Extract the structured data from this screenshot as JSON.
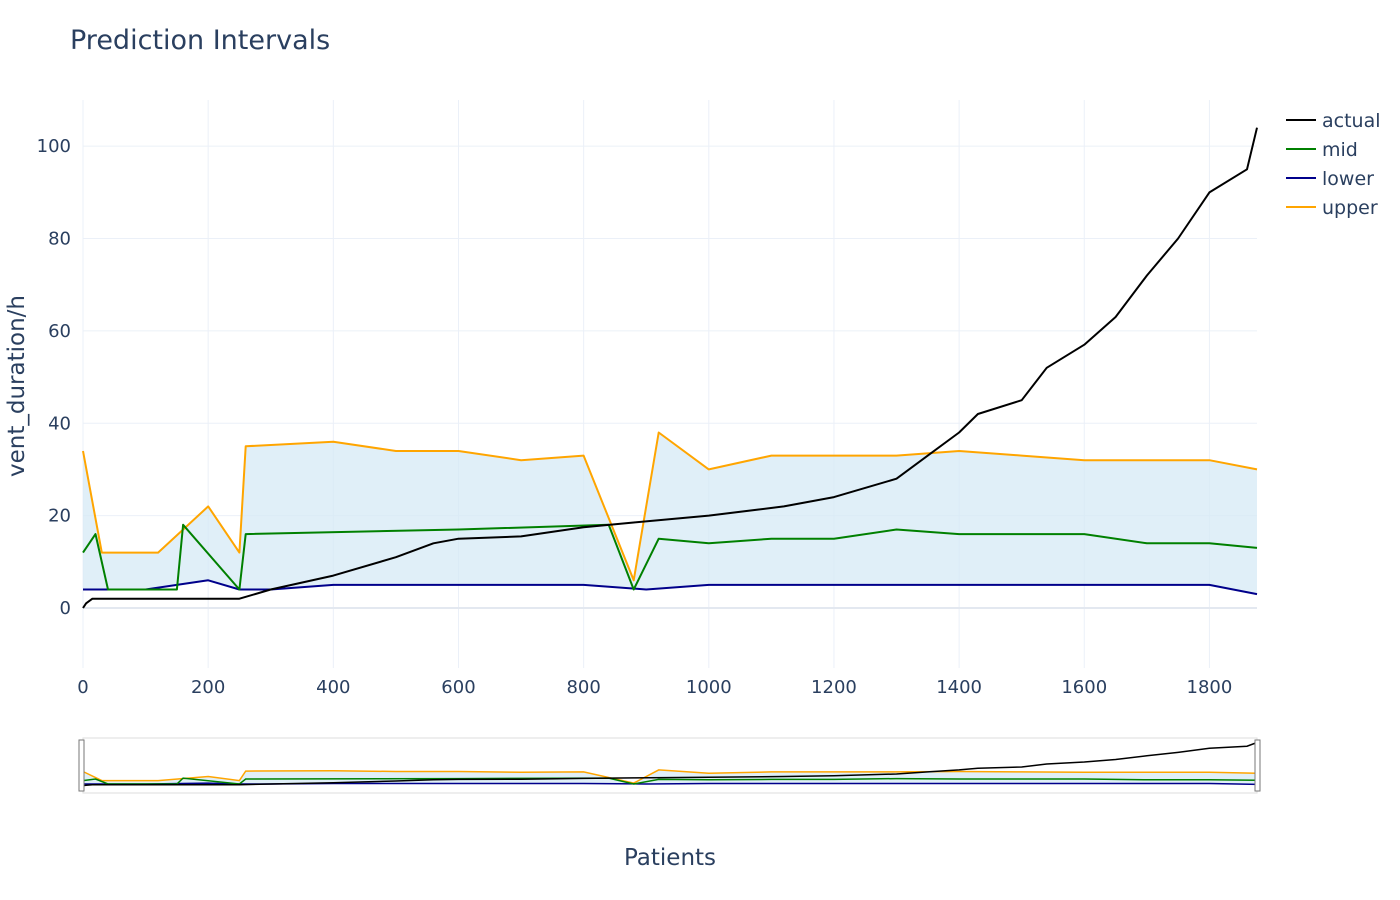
{
  "chart_data": {
    "type": "line",
    "title": "Prediction Intervals",
    "xlabel": "Patients",
    "ylabel": "vent_duration/h",
    "xlim": [
      0,
      1876
    ],
    "ylim": [
      -13,
      110
    ],
    "x_ticks": [
      "0",
      "200",
      "400",
      "600",
      "800",
      "1000",
      "1200",
      "1400",
      "1600",
      "1800"
    ],
    "y_ticks": [
      "0",
      "20",
      "40",
      "60",
      "80",
      "100"
    ],
    "grid": true,
    "legend_position": "top-right",
    "range_slider": true,
    "interval_fill_color": "#d6eaf5",
    "series": [
      {
        "name": "actual",
        "color": "#000000",
        "points": [
          [
            0,
            0
          ],
          [
            5,
            1
          ],
          [
            15,
            2
          ],
          [
            250,
            2
          ],
          [
            300,
            4
          ],
          [
            400,
            7
          ],
          [
            500,
            11
          ],
          [
            560,
            14
          ],
          [
            600,
            15
          ],
          [
            700,
            15.5
          ],
          [
            800,
            17.5
          ],
          [
            880,
            18.5
          ],
          [
            1000,
            20
          ],
          [
            1120,
            22
          ],
          [
            1200,
            24
          ],
          [
            1300,
            28
          ],
          [
            1350,
            33
          ],
          [
            1400,
            38
          ],
          [
            1430,
            42
          ],
          [
            1500,
            45
          ],
          [
            1540,
            52
          ],
          [
            1600,
            57
          ],
          [
            1650,
            63
          ],
          [
            1700,
            72
          ],
          [
            1750,
            80
          ],
          [
            1800,
            90
          ],
          [
            1860,
            95
          ],
          [
            1876,
            104
          ]
        ]
      },
      {
        "name": "mid",
        "color": "#008000",
        "points": [
          [
            0,
            12
          ],
          [
            20,
            16
          ],
          [
            40,
            4
          ],
          [
            150,
            4
          ],
          [
            160,
            18
          ],
          [
            250,
            4
          ],
          [
            260,
            16
          ],
          [
            600,
            17
          ],
          [
            840,
            18
          ],
          [
            880,
            4
          ],
          [
            920,
            15
          ],
          [
            1000,
            14
          ],
          [
            1100,
            15
          ],
          [
            1200,
            15
          ],
          [
            1300,
            17
          ],
          [
            1400,
            16
          ],
          [
            1500,
            16
          ],
          [
            1600,
            16
          ],
          [
            1700,
            14
          ],
          [
            1800,
            14
          ],
          [
            1876,
            13
          ]
        ]
      },
      {
        "name": "lower",
        "color": "#00008b",
        "points": [
          [
            0,
            4
          ],
          [
            100,
            4
          ],
          [
            200,
            6
          ],
          [
            250,
            4
          ],
          [
            300,
            4
          ],
          [
            400,
            5
          ],
          [
            500,
            5
          ],
          [
            600,
            5
          ],
          [
            700,
            5
          ],
          [
            800,
            5
          ],
          [
            900,
            4
          ],
          [
            1000,
            5
          ],
          [
            1100,
            5
          ],
          [
            1200,
            5
          ],
          [
            1300,
            5
          ],
          [
            1400,
            5
          ],
          [
            1500,
            5
          ],
          [
            1600,
            5
          ],
          [
            1700,
            5
          ],
          [
            1800,
            5
          ],
          [
            1876,
            3
          ]
        ]
      },
      {
        "name": "upper",
        "color": "#ffa500",
        "points": [
          [
            0,
            34
          ],
          [
            30,
            12
          ],
          [
            120,
            12
          ],
          [
            200,
            22
          ],
          [
            250,
            12
          ],
          [
            260,
            35
          ],
          [
            400,
            36
          ],
          [
            500,
            34
          ],
          [
            600,
            34
          ],
          [
            700,
            32
          ],
          [
            800,
            33
          ],
          [
            880,
            6
          ],
          [
            920,
            38
          ],
          [
            1000,
            30
          ],
          [
            1100,
            33
          ],
          [
            1200,
            33
          ],
          [
            1300,
            33
          ],
          [
            1400,
            34
          ],
          [
            1500,
            33
          ],
          [
            1600,
            32
          ],
          [
            1700,
            32
          ],
          [
            1800,
            32
          ],
          [
            1876,
            30
          ]
        ]
      }
    ]
  }
}
